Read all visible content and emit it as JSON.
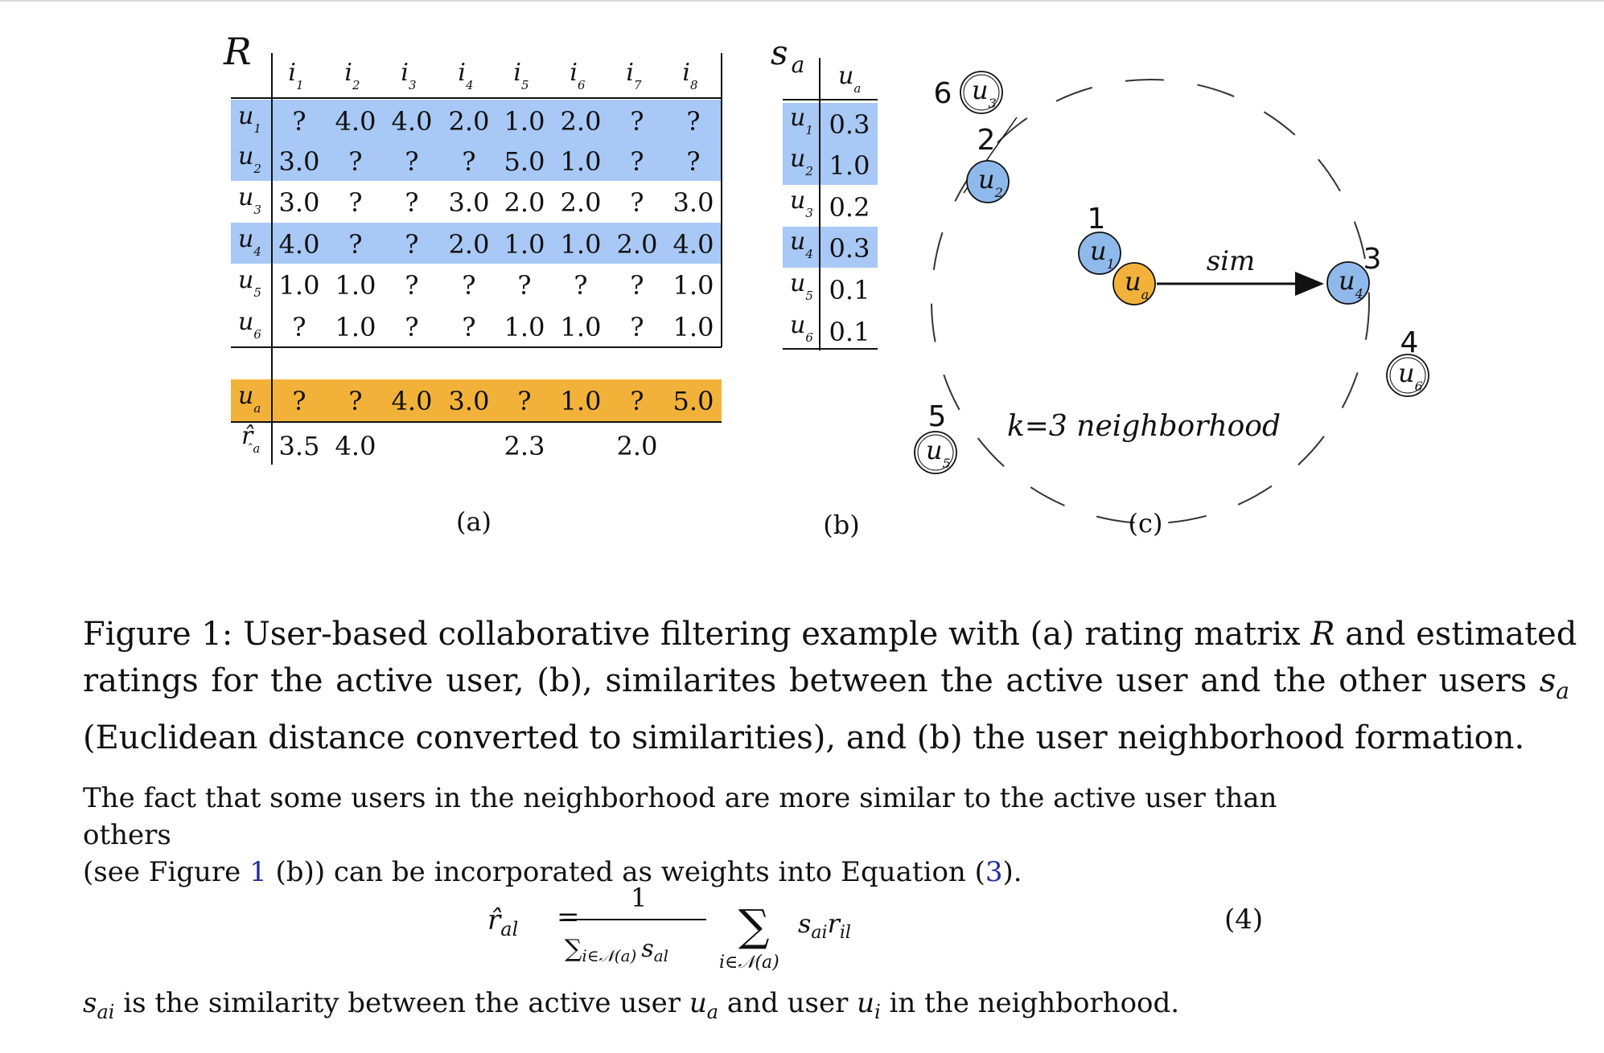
{
  "figure": {
    "panel_a": {
      "matrix_label": "R",
      "item_headers": [
        "i1",
        "i2",
        "i3",
        "i4",
        "i5",
        "i6",
        "i7",
        "i8"
      ],
      "user_labels": [
        "u1",
        "u2",
        "u3",
        "u4",
        "u5",
        "u6"
      ],
      "ratings": [
        [
          "?",
          "4.0",
          "4.0",
          "2.0",
          "1.0",
          "2.0",
          "?",
          "?"
        ],
        [
          "3.0",
          "?",
          "?",
          "?",
          "5.0",
          "1.0",
          "?",
          "?"
        ],
        [
          "3.0",
          "?",
          "?",
          "3.0",
          "2.0",
          "2.0",
          "?",
          "3.0"
        ],
        [
          "4.0",
          "?",
          "?",
          "2.0",
          "1.0",
          "1.0",
          "2.0",
          "4.0"
        ],
        [
          "1.0",
          "1.0",
          "?",
          "?",
          "?",
          "?",
          "?",
          "1.0"
        ],
        [
          "?",
          "1.0",
          "?",
          "?",
          "1.0",
          "1.0",
          "?",
          "1.0"
        ]
      ],
      "highlighted_users": [
        0,
        1,
        3
      ],
      "active_label": "ua",
      "active_ratings": [
        "?",
        "?",
        "4.0",
        "3.0",
        "?",
        "1.0",
        "?",
        "5.0"
      ],
      "estimate_label": "r̂a",
      "estimates": [
        "3.5",
        "4.0",
        "",
        "",
        "2.3",
        "",
        "2.0",
        ""
      ],
      "label": "(a)"
    },
    "panel_b": {
      "title": "sa",
      "column_header": "ua",
      "rows": [
        {
          "user": "u1",
          "value": "0.3"
        },
        {
          "user": "u2",
          "value": "1.0"
        },
        {
          "user": "u3",
          "value": "0.2"
        },
        {
          "user": "u4",
          "value": "0.3"
        },
        {
          "user": "u5",
          "value": "0.1"
        },
        {
          "user": "u6",
          "value": "0.1"
        }
      ],
      "label": "(b)"
    },
    "panel_c": {
      "nodes": [
        {
          "id": "u1",
          "rank": "1"
        },
        {
          "id": "u2",
          "rank": "2"
        },
        {
          "id": "u3",
          "rank": "6"
        },
        {
          "id": "u4",
          "rank": "3"
        },
        {
          "id": "u5",
          "rank": "5"
        },
        {
          "id": "u6",
          "rank": "4"
        },
        {
          "id": "ua",
          "rank": ""
        }
      ],
      "edge_label": "sim",
      "neighborhood_label": "k=3 neighborhood",
      "label": "(c)"
    }
  },
  "caption": {
    "lines": [
      "Figure 1: User-based collaborative filtering example with (a) rating matrix R and estimated",
      "ratings for the active user, (b), similarites between the active user and the other users sa",
      "(Euclidean distance converted to similarities), and (b) the user neighborhood formation."
    ]
  },
  "body": {
    "line1": "The fact that some users in the neighborhood are more similar to the active user than others",
    "line2_pre": "(see Figure ",
    "line2_ref": "1",
    "line2_mid": " (b)) can be incorporated as weights into Equation (",
    "line2_ref2": "3",
    "line2_post": ")."
  },
  "equation": {
    "number": "(4)",
    "numerator": "1"
  },
  "footer": {
    "pre": " is the similarity between the active user ",
    "mid": " and user ",
    "post": " in the neighborhood."
  },
  "colors": {
    "blue_highlight": "#a8c8f5",
    "orange_highlight": "#f2b23a",
    "node_blue": "#8fb9ea",
    "node_orange": "#f2b23a",
    "ref_link": "#1f2f9e"
  }
}
